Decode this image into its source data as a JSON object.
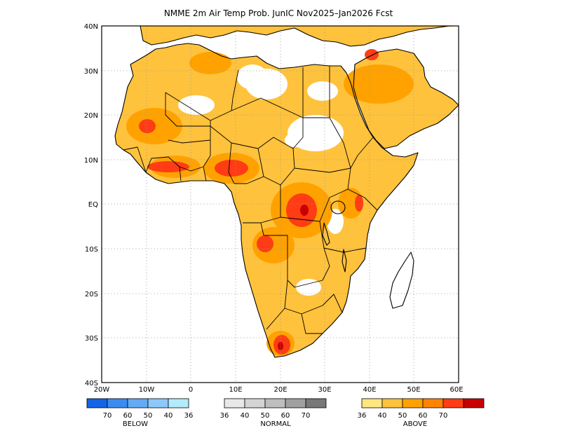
{
  "title": "NMME 2m Air Temp Prob. JunIC   Nov2025–Jan2026 Fcst",
  "colors": {
    "above": [
      "#ffe680",
      "#ffc23c",
      "#ffa200",
      "#ff8200",
      "#ff3c14",
      "#c80000"
    ],
    "normal": [
      "#e8e8e8",
      "#d4d4d4",
      "#bebebe",
      "#a0a0a0",
      "#787878"
    ],
    "below": [
      "#1464e6",
      "#3c8cf0",
      "#64aaf5",
      "#8cc8fa",
      "#b4ebfa"
    ]
  },
  "map": {
    "lon_ticks": [
      "20W",
      "10W",
      "0",
      "10E",
      "20E",
      "30E",
      "40E",
      "50E",
      "60E"
    ],
    "lat_ticks": [
      "40N",
      "30N",
      "20N",
      "10N",
      "EQ",
      "10S",
      "20S",
      "30S",
      "40S"
    ],
    "lon_range": [
      -20,
      60
    ],
    "lat_range": [
      -40,
      40
    ],
    "grid": "dotted"
  },
  "legend": {
    "below": {
      "label": "BELOW",
      "values": [
        "70",
        "60",
        "50",
        "40",
        "36"
      ]
    },
    "normal": {
      "label": "NORMAL",
      "values": [
        "36",
        "40",
        "50",
        "60",
        "70"
      ]
    },
    "above": {
      "label": "ABOVE",
      "values": [
        "36",
        "40",
        "50",
        "60",
        "70"
      ]
    }
  }
}
